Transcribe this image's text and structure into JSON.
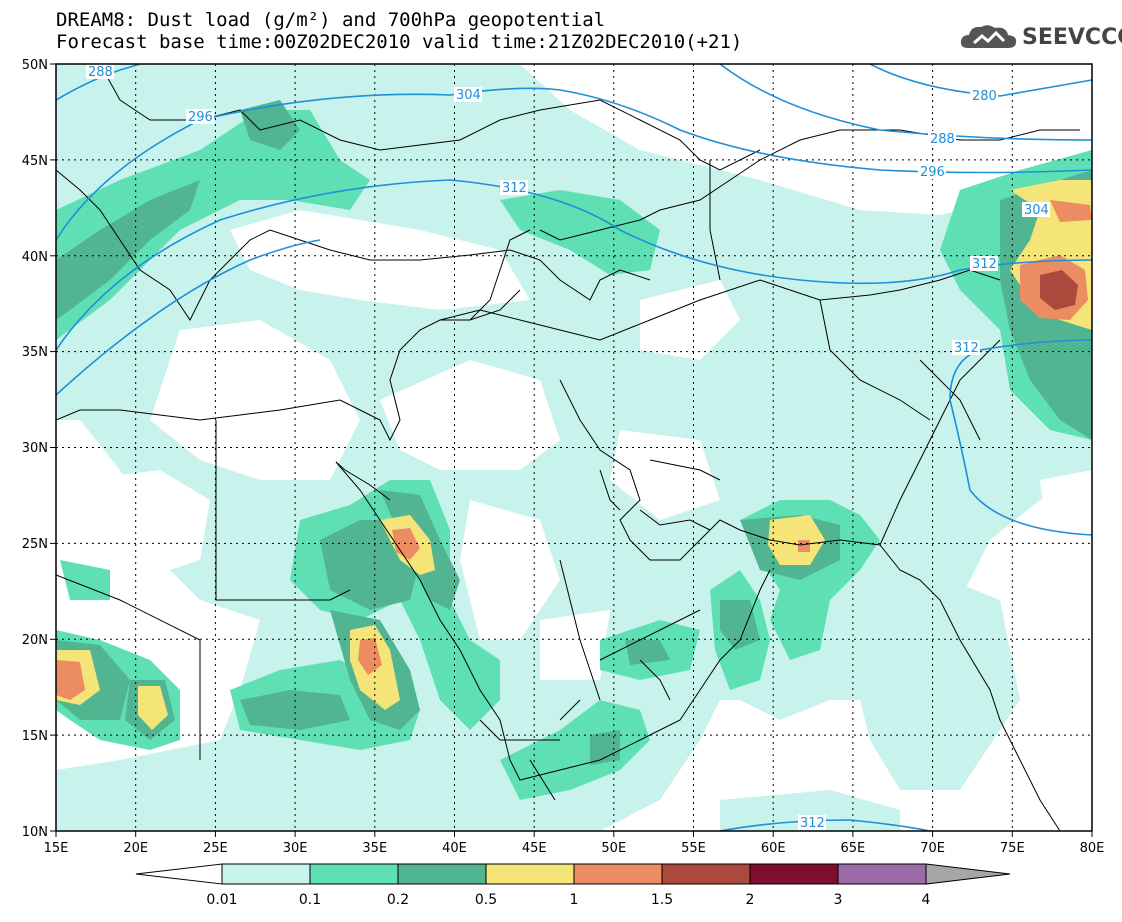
{
  "header": {
    "title_line1": "DREAM8: Dust load (g/m²) and 700hPa geopotential",
    "title_line2": "Forecast base time:00Z02DEC2010 valid time:21Z02DEC2010(+21)",
    "logo_text": "SEEVCCC",
    "logo_icon": "cloud-icon"
  },
  "map": {
    "lat_labels": [
      "50N",
      "45N",
      "40N",
      "35N",
      "30N",
      "25N",
      "20N",
      "15N",
      "10N"
    ],
    "lon_labels": [
      "15E",
      "20E",
      "25E",
      "30E",
      "35E",
      "40E",
      "45E",
      "50E",
      "55E",
      "60E",
      "65E",
      "70E",
      "75E",
      "80E"
    ],
    "contour_labels": [
      "288",
      "296",
      "304",
      "312",
      "280",
      "288",
      "296",
      "304",
      "312",
      "312",
      "312"
    ],
    "contour_color": "#1f8fd8"
  },
  "colorbar": {
    "labels": [
      "0.01",
      "0.1",
      "0.2",
      "0.5",
      "1",
      "1.5",
      "2",
      "3",
      "4"
    ],
    "colors": [
      "#c8f3ec",
      "#5fe0b4",
      "#52b592",
      "#f5e579",
      "#ec8c62",
      "#ab4a3c",
      "#7e0e30",
      "#9d6aa9",
      "#a6a6a6"
    ]
  }
}
